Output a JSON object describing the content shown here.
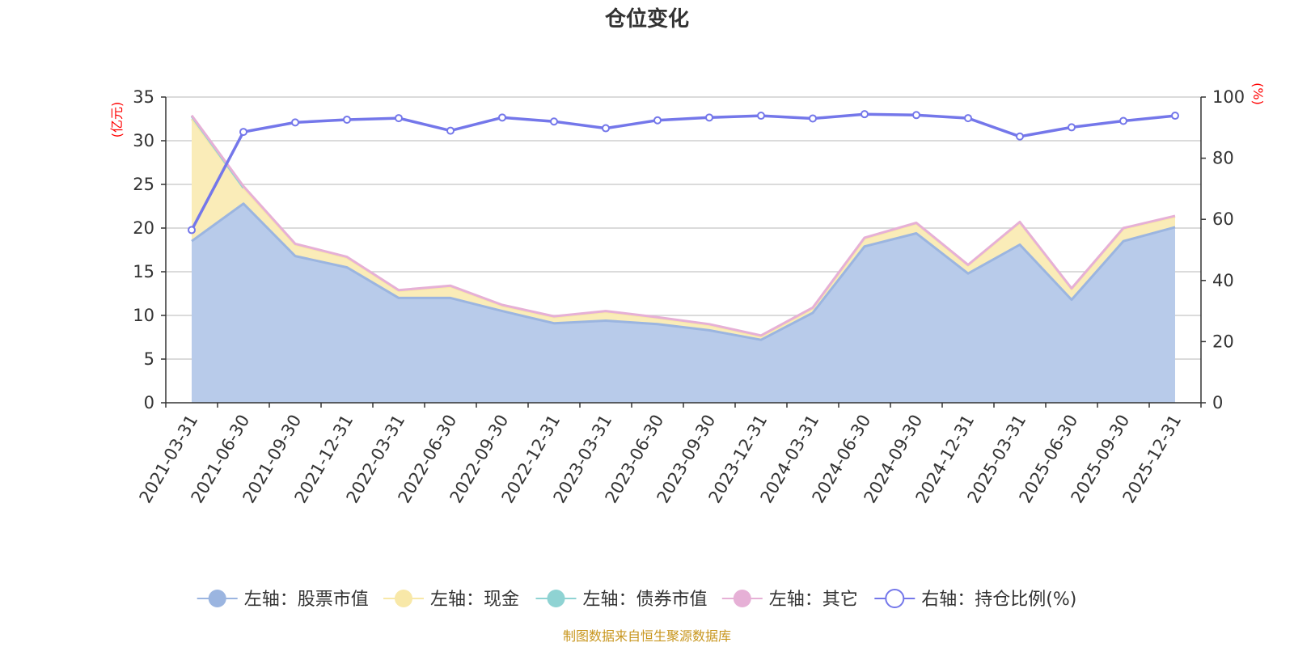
{
  "chart_data": {
    "type": "area",
    "title": "仓位变化",
    "left_unit": "(亿元)",
    "right_unit": "(%)",
    "x": [
      "2021-03-31",
      "2021-06-30",
      "2021-09-30",
      "2021-12-31",
      "2022-03-31",
      "2022-06-30",
      "2022-09-30",
      "2022-12-31",
      "2023-03-31",
      "2023-06-30",
      "2023-09-30",
      "2023-12-31",
      "2024-03-31",
      "2024-06-30",
      "2024-09-30",
      "2024-12-31",
      "2025-03-31",
      "2025-06-30",
      "2025-09-30",
      "2025-12-31"
    ],
    "ylim_left": [
      0,
      35
    ],
    "yticks_left": [
      0,
      5,
      10,
      15,
      20,
      25,
      30,
      35
    ],
    "ylim_right": [
      0,
      100
    ],
    "yticks_right": [
      0,
      20,
      40,
      60,
      80,
      100
    ],
    "grid": true,
    "legend_position": "bottom",
    "series": [
      {
        "name": "左轴：股票市值",
        "axis": "left",
        "stack": true,
        "color": "#9bb5e0",
        "fill": "#b8cbea",
        "values": [
          18.5,
          22.8,
          16.8,
          15.5,
          12.0,
          12.0,
          10.5,
          9.1,
          9.4,
          9.0,
          8.3,
          7.2,
          10.3,
          17.9,
          19.4,
          14.8,
          18.1,
          11.8,
          18.5,
          20.1
        ]
      },
      {
        "name": "左轴：现金",
        "axis": "left",
        "stack": true,
        "color": "#f8e8a8",
        "fill": "#faecb8",
        "values": [
          14.0,
          1.8,
          1.3,
          1.1,
          0.8,
          1.3,
          0.6,
          0.7,
          1.0,
          0.7,
          0.6,
          0.4,
          0.5,
          0.9,
          1.1,
          0.9,
          2.5,
          1.2,
          1.4,
          1.2
        ]
      },
      {
        "name": "左轴：债券市值",
        "axis": "left",
        "stack": true,
        "color": "#8fd3d3",
        "fill": "#a6dcdc",
        "values": [
          0.3,
          0.0,
          null,
          null,
          null,
          null,
          null,
          null,
          null,
          null,
          null,
          null,
          null,
          null,
          null,
          null,
          null,
          null,
          null,
          null
        ]
      },
      {
        "name": "左轴：其它",
        "axis": "left",
        "stack": true,
        "color": "#e6b0d6",
        "fill": "#eec3e0",
        "values": [
          0.1,
          0.2,
          0.1,
          0.1,
          0.1,
          0.1,
          0.1,
          0.1,
          0.1,
          0.1,
          0.1,
          0.1,
          0.1,
          0.1,
          0.1,
          0.1,
          0.1,
          0.1,
          0.1,
          0.1
        ]
      },
      {
        "name": "右轴：持仓比例(%)",
        "axis": "right",
        "stack": false,
        "color": "#7477ea",
        "fill": "none",
        "values": [
          56.5,
          88.6,
          91.7,
          92.6,
          93.1,
          89.0,
          93.3,
          92.0,
          89.8,
          92.4,
          93.3,
          93.9,
          93.0,
          94.4,
          94.1,
          93.1,
          87.1,
          90.1,
          92.2,
          93.9
        ]
      }
    ]
  },
  "footer": {
    "source": "制图数据来自恒生聚源数据库"
  }
}
